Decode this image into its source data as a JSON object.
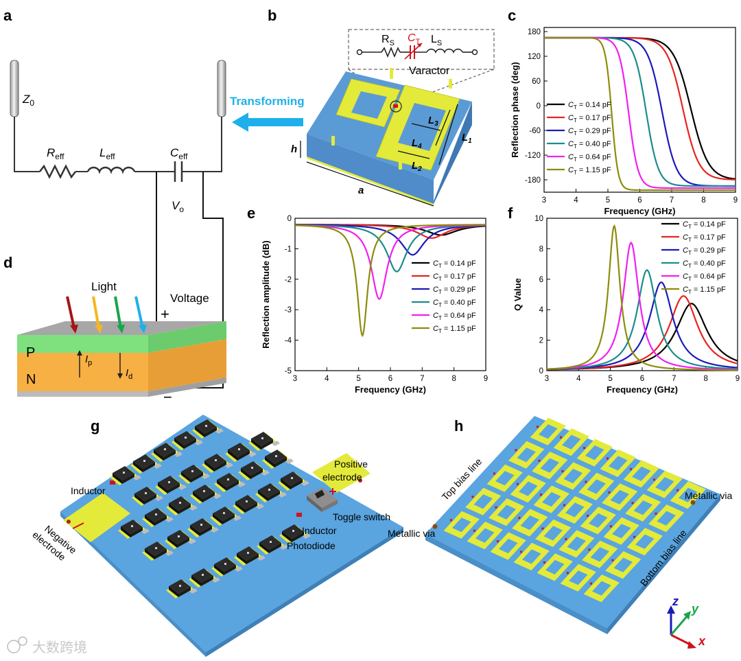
{
  "panel_labels": [
    "a",
    "b",
    "c",
    "d",
    "e",
    "f",
    "g",
    "h"
  ],
  "panel_a": {
    "z0": "Z",
    "z0_sub": "0",
    "r": "R",
    "r_sub": "eff",
    "l": "L",
    "l_sub": "eff",
    "c": "C",
    "c_sub": "eff",
    "v": "V",
    "v_sub": "o",
    "transform_label": "Transforming"
  },
  "panel_b": {
    "rs": "R",
    "rs_sub": "S",
    "ct": "C",
    "ct_sub": "T",
    "ls": "L",
    "ls_sub": "S",
    "varactor": "Varactor",
    "dims": {
      "l1": "L",
      "l1_sub": "1",
      "l2": "L",
      "l2_sub": "2",
      "l3": "L",
      "l3_sub": "3",
      "l4": "L",
      "l4_sub": "4",
      "h": "h",
      "a": "a"
    }
  },
  "panel_d": {
    "light": "Light",
    "voltage": "Voltage",
    "plus": "+",
    "minus": "−",
    "p": "P",
    "n": "N",
    "ip": "I",
    "ip_sub": "p",
    "id": "I",
    "id_sub": "d"
  },
  "panel_g": {
    "inductor_left": "Inductor",
    "positive_electrode_1": "Positive",
    "positive_electrode_2": "electrode",
    "toggle_switch": "Toggle switch",
    "inductor_right": "Inductor",
    "photodiode": "Photodiode",
    "negative_electrode_1": "Negative",
    "negative_electrode_2": "electrode"
  },
  "panel_h": {
    "top_bias": "Top bias line",
    "metallic_via_right": "Metallic via",
    "metallic_via_left": "Metallic via",
    "bottom_bias": "Bottom bias line",
    "axis_z": "z",
    "axis_y": "y",
    "axis_x": "x"
  },
  "watermark": "大数跨境",
  "series_colors": [
    "#000000",
    "#e8231f",
    "#1a1ab8",
    "#1a8c8c",
    "#f21ef2",
    "#8c8c0a"
  ],
  "legend": {
    "prefix": "C",
    "sub": "T",
    "entries": [
      " = 0.14 pF",
      " = 0.17 pF",
      " = 0.29 pF",
      " = 0.40 pF",
      " = 0.64 pF",
      " = 1.15 pF"
    ]
  },
  "chart_data": [
    {
      "panel": "c",
      "type": "line",
      "xlabel": "Frequency (GHz)",
      "ylabel": "Reflection phase (deg)",
      "xlim": [
        3,
        9
      ],
      "ylim": [
        -210,
        190
      ],
      "xticks": [
        3,
        4,
        5,
        6,
        7,
        8,
        9
      ],
      "yticks": [
        180,
        120,
        60,
        0,
        -60,
        -120,
        -180
      ],
      "legend_position": "center-left",
      "series": [
        {
          "name": "CT = 0.14 pF",
          "resonance_ghz": 7.6,
          "width_ghz": 0.55,
          "phase_start": 165,
          "phase_end": -180
        },
        {
          "name": "CT = 0.17 pF",
          "resonance_ghz": 7.35,
          "width_ghz": 0.5,
          "phase_start": 165,
          "phase_end": -180
        },
        {
          "name": "CT = 0.29 pF",
          "resonance_ghz": 6.7,
          "width_ghz": 0.45,
          "phase_start": 165,
          "phase_end": -195
        },
        {
          "name": "CT = 0.40 pF",
          "resonance_ghz": 6.2,
          "width_ghz": 0.38,
          "phase_start": 165,
          "phase_end": -195
        },
        {
          "name": "CT = 0.64 pF",
          "resonance_ghz": 5.65,
          "width_ghz": 0.3,
          "phase_start": 165,
          "phase_end": -200
        },
        {
          "name": "CT = 1.15 pF",
          "resonance_ghz": 5.12,
          "width_ghz": 0.2,
          "phase_start": 165,
          "phase_end": -205
        }
      ]
    },
    {
      "panel": "e",
      "type": "line",
      "xlabel": "Frequency (GHz)",
      "ylabel": "Reflection amplitude (dB)",
      "xlim": [
        3,
        9
      ],
      "ylim": [
        -5,
        0
      ],
      "xticks": [
        3,
        4,
        5,
        6,
        7,
        8,
        9
      ],
      "yticks": [
        0,
        -1,
        -2,
        -3,
        -4,
        -5
      ],
      "legend_position": "right",
      "series": [
        {
          "name": "CT = 0.14 pF",
          "resonance_ghz": 7.6,
          "min_db": -0.55,
          "width_ghz": 0.6
        },
        {
          "name": "CT = 0.17 pF",
          "resonance_ghz": 7.3,
          "min_db": -0.65,
          "width_ghz": 0.55
        },
        {
          "name": "CT = 0.29 pF",
          "resonance_ghz": 6.7,
          "min_db": -1.2,
          "width_ghz": 0.45
        },
        {
          "name": "CT = 0.40 pF",
          "resonance_ghz": 6.2,
          "min_db": -1.75,
          "width_ghz": 0.38
        },
        {
          "name": "CT = 0.64 pF",
          "resonance_ghz": 5.65,
          "min_db": -2.65,
          "width_ghz": 0.3
        },
        {
          "name": "CT = 1.15 pF",
          "resonance_ghz": 5.12,
          "min_db": -3.85,
          "width_ghz": 0.2
        }
      ]
    },
    {
      "panel": "f",
      "type": "line",
      "xlabel": "Frequency (GHz)",
      "ylabel": "Q Value",
      "xlim": [
        3,
        9
      ],
      "ylim": [
        0,
        10
      ],
      "xticks": [
        3,
        4,
        5,
        6,
        7,
        8,
        9
      ],
      "yticks": [
        0,
        2,
        4,
        6,
        8,
        10
      ],
      "legend_position": "top-right",
      "series": [
        {
          "name": "CT = 0.14 pF",
          "resonance_ghz": 7.55,
          "peak_q": 4.4,
          "width_ghz": 0.6
        },
        {
          "name": "CT = 0.17 pF",
          "resonance_ghz": 7.3,
          "peak_q": 4.9,
          "width_ghz": 0.55
        },
        {
          "name": "CT = 0.29 pF",
          "resonance_ghz": 6.6,
          "peak_q": 5.8,
          "width_ghz": 0.45
        },
        {
          "name": "CT = 0.40 pF",
          "resonance_ghz": 6.15,
          "peak_q": 6.6,
          "width_ghz": 0.38
        },
        {
          "name": "CT = 0.64 pF",
          "resonance_ghz": 5.65,
          "peak_q": 8.4,
          "width_ghz": 0.3
        },
        {
          "name": "CT = 1.15 pF",
          "resonance_ghz": 5.12,
          "peak_q": 9.5,
          "width_ghz": 0.22
        }
      ]
    }
  ]
}
